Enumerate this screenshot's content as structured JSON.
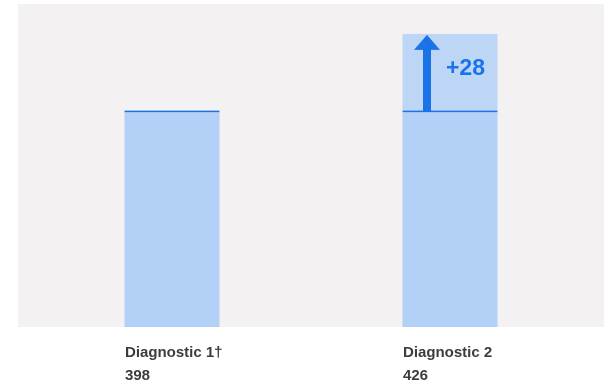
{
  "chart_data": {
    "type": "bar",
    "categories": [
      "Diagnostic 1†",
      "Diagnostic 2"
    ],
    "values": [
      398,
      426
    ],
    "value_labels": [
      "398",
      "426"
    ],
    "annotation": {
      "text": "+28",
      "from": 398,
      "to": 426,
      "category_index": 1
    },
    "ylim": [
      320,
      435
    ],
    "grid": false,
    "legend": "none"
  },
  "colors": {
    "plot_background": "#f3f1f2",
    "bar_fill": "#b3d1f7",
    "bar_line": "#1a73e8",
    "arrow": "#1a73e8",
    "annotation_text": "#1a73e8",
    "label_text": "#3c3c3c"
  }
}
